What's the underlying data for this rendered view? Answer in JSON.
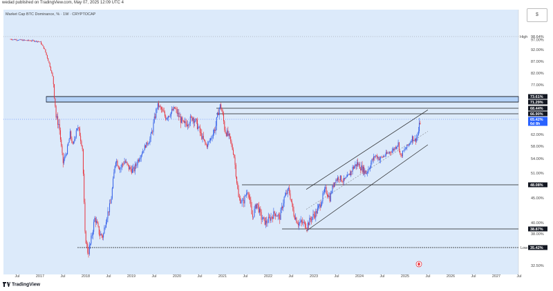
{
  "header": {
    "published_line": "wedad published on TradingView.com, May 07, 2025 12:09 UTC 4",
    "symbol_line": "Market Cap BTC Dominance, % · 1W · CRYPTOCAP"
  },
  "corner_button": {
    "label": "$"
  },
  "footer": {
    "brand": "TradingView"
  },
  "colors": {
    "plot_bg": "#dceafa",
    "up": "#2f5ce8",
    "down": "#e8323c",
    "price_tag": "#2962ff",
    "zone_fill": "#b3d1f7"
  },
  "chart_data": {
    "type": "candlestick",
    "title": "Market Cap BTC Dominance, % · 1W · CRYPTOCAP",
    "x_ticks": [
      "Jul",
      "2017",
      "Jul",
      "2018",
      "Jul",
      "2019",
      "Jul",
      "2020",
      "Jul",
      "2021",
      "Jul",
      "2022",
      "Jul",
      "2023",
      "Jul",
      "2024",
      "Jul",
      "2025",
      "Jul",
      "2026",
      "Jul",
      "2027",
      "Jul"
    ],
    "y_ticks": [
      {
        "label": "97.00%",
        "value": 97.0
      },
      {
        "label": "92.00%",
        "value": 92.0
      },
      {
        "label": "87.00%",
        "value": 87.0
      },
      {
        "label": "82.00%",
        "value": 82.0
      },
      {
        "label": "77.00%",
        "value": 77.0
      },
      {
        "label": "62.00%",
        "value": 62.0
      },
      {
        "label": "58.00%",
        "value": 58.0
      },
      {
        "label": "54.00%",
        "value": 54.0
      },
      {
        "label": "51.00%",
        "value": 51.0
      },
      {
        "label": "45.00%",
        "value": 45.0
      },
      {
        "label": "40.00%",
        "value": 40.0
      },
      {
        "label": "38.00%",
        "value": 38.0
      },
      {
        "label": "32.50%",
        "value": 32.5
      }
    ],
    "levels": [
      {
        "label": "73.61%",
        "value": 73.61,
        "style": "dark"
      },
      {
        "label": "71.29%",
        "value": 71.29,
        "style": "dark"
      },
      {
        "label": "68.44%",
        "value": 68.44,
        "style": "dark"
      },
      {
        "label": "66.90%",
        "value": 66.9,
        "style": "dark"
      },
      {
        "label": "48.08%",
        "value": 48.08,
        "style": "dark"
      },
      {
        "label": "38.87%",
        "value": 38.87,
        "style": "dark"
      },
      {
        "label": "35.42%",
        "value": 35.42,
        "style": "dark"
      }
    ],
    "current": {
      "label": "65.42%",
      "value": 65.42,
      "countdown": "6d 8h"
    },
    "high": {
      "label": "High",
      "value_label": "98.64%",
      "value": 98.64
    },
    "low": {
      "label": "Low",
      "value_label": "35.41%",
      "value": 35.41
    },
    "zone": {
      "from": 71.29,
      "to": 73.61
    },
    "channel": {
      "start": {
        "date": "2022-11",
        "lower": 38.5,
        "upper": 47.0
      },
      "end": {
        "date": "2025-07",
        "lower": 58.5,
        "upper": 68.0
      },
      "mid_offset": 4.2
    },
    "series_path": [
      [
        2016.35,
        97.3
      ],
      [
        2016.6,
        96.8
      ],
      [
        2016.85,
        96.5
      ],
      [
        2017.0,
        96.0
      ],
      [
        2017.1,
        92.0
      ],
      [
        2017.2,
        86.0
      ],
      [
        2017.28,
        80.0
      ],
      [
        2017.35,
        66.0
      ],
      [
        2017.42,
        64.0
      ],
      [
        2017.5,
        53.0
      ],
      [
        2017.58,
        56.0
      ],
      [
        2017.66,
        62.0
      ],
      [
        2017.72,
        58.0
      ],
      [
        2017.8,
        64.0
      ],
      [
        2017.87,
        62.0
      ],
      [
        2017.93,
        57.0
      ],
      [
        2017.98,
        38.0
      ],
      [
        2018.05,
        34.5
      ],
      [
        2018.1,
        36.0
      ],
      [
        2018.2,
        41.0
      ],
      [
        2018.3,
        38.0
      ],
      [
        2018.38,
        37.5
      ],
      [
        2018.45,
        41.0
      ],
      [
        2018.55,
        44.0
      ],
      [
        2018.65,
        54.0
      ],
      [
        2018.75,
        52.0
      ],
      [
        2018.85,
        53.5
      ],
      [
        2018.95,
        52.0
      ],
      [
        2019.05,
        51.5
      ],
      [
        2019.2,
        55.0
      ],
      [
        2019.3,
        58.0
      ],
      [
        2019.4,
        60.0
      ],
      [
        2019.5,
        65.0
      ],
      [
        2019.58,
        70.0
      ],
      [
        2019.66,
        68.0
      ],
      [
        2019.75,
        66.0
      ],
      [
        2019.85,
        67.0
      ],
      [
        2019.95,
        68.5
      ],
      [
        2020.05,
        66.0
      ],
      [
        2020.15,
        64.0
      ],
      [
        2020.25,
        65.0
      ],
      [
        2020.35,
        66.0
      ],
      [
        2020.45,
        64.0
      ],
      [
        2020.55,
        61.0
      ],
      [
        2020.65,
        58.0
      ],
      [
        2020.75,
        61.0
      ],
      [
        2020.85,
        64.0
      ],
      [
        2020.95,
        70.0
      ],
      [
        2021.05,
        63.0
      ],
      [
        2021.15,
        61.0
      ],
      [
        2021.25,
        55.0
      ],
      [
        2021.35,
        45.0
      ],
      [
        2021.45,
        44.0
      ],
      [
        2021.55,
        47.0
      ],
      [
        2021.65,
        41.0
      ],
      [
        2021.75,
        44.0
      ],
      [
        2021.85,
        41.0
      ],
      [
        2021.95,
        40.0
      ],
      [
        2022.05,
        41.0
      ],
      [
        2022.15,
        42.0
      ],
      [
        2022.25,
        41.0
      ],
      [
        2022.35,
        45.0
      ],
      [
        2022.45,
        47.0
      ],
      [
        2022.55,
        42.0
      ],
      [
        2022.65,
        40.0
      ],
      [
        2022.75,
        40.0
      ],
      [
        2022.85,
        39.5
      ],
      [
        2022.95,
        41.0
      ],
      [
        2023.05,
        42.0
      ],
      [
        2023.15,
        44.0
      ],
      [
        2023.25,
        47.0
      ],
      [
        2023.35,
        45.0
      ],
      [
        2023.45,
        49.0
      ],
      [
        2023.55,
        50.0
      ],
      [
        2023.65,
        49.0
      ],
      [
        2023.75,
        50.0
      ],
      [
        2023.85,
        52.0
      ],
      [
        2023.95,
        53.0
      ],
      [
        2024.05,
        52.0
      ],
      [
        2024.15,
        51.0
      ],
      [
        2024.25,
        53.0
      ],
      [
        2024.35,
        55.0
      ],
      [
        2024.45,
        54.0
      ],
      [
        2024.55,
        55.0
      ],
      [
        2024.65,
        56.0
      ],
      [
        2024.75,
        57.0
      ],
      [
        2024.85,
        59.0
      ],
      [
        2024.9,
        54.5
      ],
      [
        2024.95,
        56.0
      ],
      [
        2025.05,
        58.0
      ],
      [
        2025.1,
        59.0
      ],
      [
        2025.15,
        61.0
      ],
      [
        2025.22,
        60.0
      ],
      [
        2025.28,
        62.0
      ],
      [
        2025.34,
        65.42
      ]
    ]
  }
}
